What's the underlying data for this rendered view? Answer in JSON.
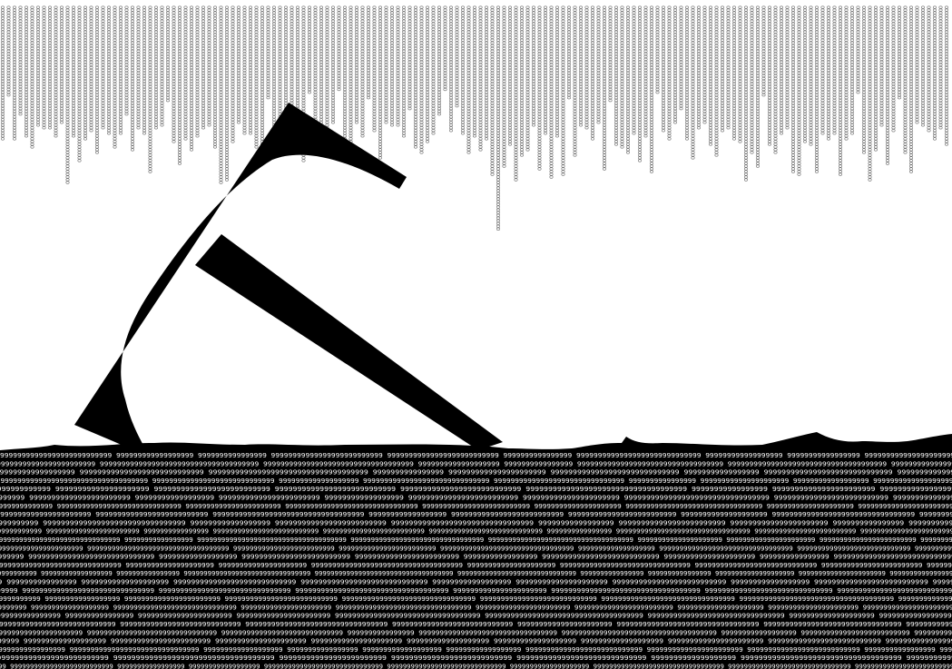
{
  "artwork": {
    "rain_glyph": "o",
    "ground_glyph": "9",
    "big_letter": "F",
    "colors": {
      "background": "#ffffff",
      "ink": "#000000",
      "rain": "#6a6a6a",
      "ground_text": "#ffffff"
    }
  }
}
